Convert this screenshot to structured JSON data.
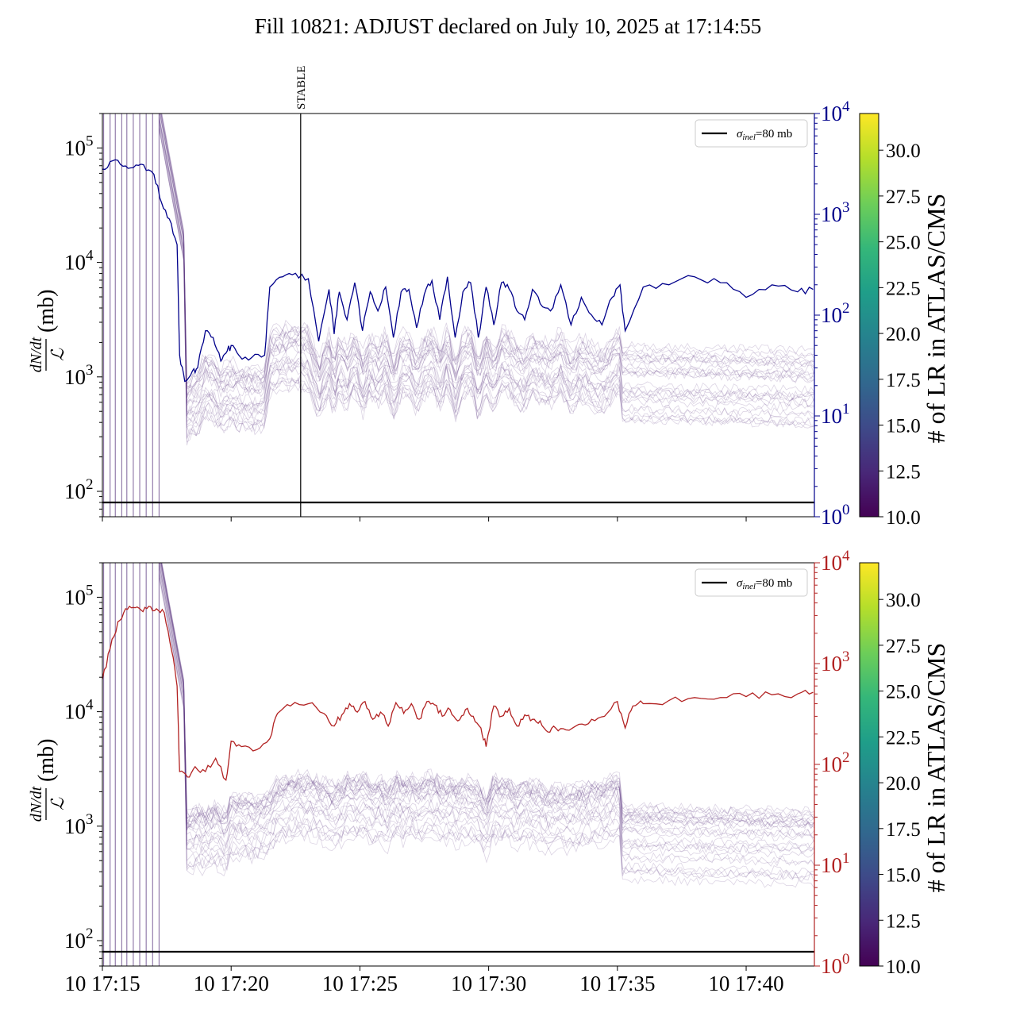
{
  "figure": {
    "title": "Fill 10821: ADJUST declared on July 10, 2025 at 17:14:55"
  },
  "colors": {
    "top_series": "#00008b",
    "bottom_series": "#b22222",
    "lr_traces": "#5e3c82",
    "reference_line": "#000000"
  },
  "chart_data": [
    {
      "type": "line",
      "panel": "top",
      "ylabel": "(mb)",
      "ylabel_fraction": {
        "numerator": "dN/dt",
        "denominator": "ℒ"
      },
      "yscale": "log",
      "ylim": [
        60,
        200000
      ],
      "y_ticks": [
        {
          "v": 100,
          "label": "10",
          "exp": "2"
        },
        {
          "v": 1000,
          "label": "10",
          "exp": "3"
        },
        {
          "v": 10000,
          "label": "10",
          "exp": "4"
        },
        {
          "v": 100000,
          "label": "10",
          "exp": "5"
        }
      ],
      "x_ticks": [
        "10 17:15",
        "10 17:20",
        "10 17:25",
        "10 17:30",
        "10 17:35",
        "10 17:40"
      ],
      "xlim_minutes": [
        15.0,
        42.65
      ],
      "y2scale": "log",
      "y2lim": [
        1,
        10000
      ],
      "y2_ticks": [
        {
          "v": 1,
          "label": "10",
          "exp": "0"
        },
        {
          "v": 10,
          "label": "10",
          "exp": "1"
        },
        {
          "v": 100,
          "label": "10",
          "exp": "2"
        },
        {
          "v": 1000,
          "label": "10",
          "exp": "3"
        },
        {
          "v": 10000,
          "label": "10",
          "exp": "4"
        }
      ],
      "y2_color": "#00008b",
      "legend": {
        "label": "σ",
        "label_sub": "inel",
        "label_rest": "=80 mb",
        "placement": "top-right"
      },
      "reference_line_y": 80,
      "markers": [
        {
          "label": "STABLE",
          "x_minute": 22.7
        }
      ],
      "early_vertical_lines_minutes": [
        15.05,
        15.3,
        15.5,
        15.75,
        15.95,
        16.2,
        16.45,
        16.7,
        16.95,
        17.2
      ],
      "colorbar": {
        "label": "# of LR in ATLAS/CMS",
        "range": [
          10.0,
          32.0
        ],
        "ticks": [
          "10.0",
          "12.5",
          "15.0",
          "17.5",
          "20.0",
          "22.5",
          "25.0",
          "27.5",
          "30.0"
        ]
      },
      "series_right_axis": {
        "minute": [
          15.0,
          15.4,
          15.8,
          16.2,
          16.6,
          17.0,
          17.3,
          17.6,
          17.9,
          18.0,
          18.2,
          18.5,
          18.7,
          19.0,
          19.3,
          19.6,
          19.8,
          20.0,
          20.3,
          20.8,
          21.3,
          21.5,
          22.0,
          22.5,
          23.0,
          23.4,
          23.8,
          24.0,
          24.2,
          24.5,
          24.8,
          25.1,
          25.4,
          25.7,
          26.0,
          26.3,
          26.6,
          26.9,
          27.2,
          27.5,
          27.8,
          28.1,
          28.4,
          28.7,
          29.0,
          29.3,
          29.6,
          29.9,
          30.2,
          30.5,
          30.8,
          31.1,
          31.4,
          31.7,
          32.0,
          32.4,
          32.8,
          33.2,
          33.6,
          34.0,
          34.4,
          34.8,
          35.1,
          35.3,
          36.0,
          37.0,
          38.0,
          39.0,
          40.0,
          41.0,
          42.0,
          42.6
        ],
        "value": [
          2800,
          3400,
          3000,
          2900,
          3100,
          2500,
          1300,
          900,
          500,
          40,
          22,
          28,
          30,
          70,
          60,
          35,
          42,
          50,
          40,
          38,
          40,
          190,
          240,
          260,
          230,
          55,
          180,
          65,
          170,
          90,
          210,
          70,
          170,
          110,
          190,
          60,
          170,
          180,
          75,
          160,
          220,
          90,
          240,
          60,
          170,
          210,
          60,
          190,
          80,
          210,
          180,
          110,
          90,
          180,
          130,
          110,
          200,
          80,
          150,
          100,
          80,
          150,
          200,
          70,
          190,
          200,
          240,
          210,
          150,
          200,
          170,
          180
        ]
      }
    },
    {
      "type": "line",
      "panel": "bottom",
      "ylabel": "(mb)",
      "ylabel_fraction": {
        "numerator": "dN/dt",
        "denominator": "ℒ"
      },
      "yscale": "log",
      "ylim": [
        60,
        200000
      ],
      "y_ticks": [
        {
          "v": 100,
          "label": "10",
          "exp": "2"
        },
        {
          "v": 1000,
          "label": "10",
          "exp": "3"
        },
        {
          "v": 10000,
          "label": "10",
          "exp": "4"
        },
        {
          "v": 100000,
          "label": "10",
          "exp": "5"
        }
      ],
      "x_ticks": [
        "10 17:15",
        "10 17:20",
        "10 17:25",
        "10 17:30",
        "10 17:35",
        "10 17:40"
      ],
      "xlim_minutes": [
        15.0,
        42.65
      ],
      "y2scale": "log",
      "y2lim": [
        1,
        10000
      ],
      "y2_ticks": [
        {
          "v": 1,
          "label": "10",
          "exp": "0"
        },
        {
          "v": 10,
          "label": "10",
          "exp": "1"
        },
        {
          "v": 100,
          "label": "10",
          "exp": "2"
        },
        {
          "v": 1000,
          "label": "10",
          "exp": "3"
        },
        {
          "v": 10000,
          "label": "10",
          "exp": "4"
        }
      ],
      "y2_color": "#b22222",
      "legend": {
        "label": "σ",
        "label_sub": "inel",
        "label_rest": "=80 mb",
        "placement": "top-right"
      },
      "reference_line_y": 80,
      "early_vertical_lines_minutes": [
        15.05,
        15.3,
        15.5,
        15.75,
        15.95,
        16.2,
        16.45,
        16.7,
        16.95,
        17.2
      ],
      "colorbar": {
        "label": "# of LR in ATLAS/CMS",
        "range": [
          10.0,
          32.0
        ],
        "ticks": [
          "10.0",
          "12.5",
          "15.0",
          "17.5",
          "20.0",
          "22.5",
          "25.0",
          "27.5",
          "30.0"
        ]
      },
      "series_right_axis": {
        "minute": [
          15.0,
          15.3,
          15.6,
          15.9,
          16.2,
          16.5,
          16.8,
          17.1,
          17.4,
          17.7,
          17.9,
          18.0,
          18.3,
          18.6,
          19.0,
          19.4,
          19.8,
          20.0,
          20.4,
          21.0,
          21.5,
          21.8,
          22.3,
          23.0,
          23.6,
          24.0,
          24.3,
          24.6,
          24.9,
          25.2,
          25.5,
          25.8,
          26.1,
          26.4,
          26.7,
          27.0,
          27.3,
          27.6,
          27.9,
          28.2,
          28.5,
          28.8,
          29.1,
          29.4,
          29.7,
          29.9,
          30.2,
          30.5,
          30.8,
          31.1,
          31.4,
          31.7,
          32.0,
          32.3,
          32.6,
          33.0,
          33.5,
          34.0,
          34.5,
          35.0,
          35.3,
          35.6,
          36.0,
          37.0,
          38.0,
          39.0,
          40.0,
          41.0,
          42.0,
          42.6
        ],
        "value": [
          700,
          1400,
          2600,
          3500,
          3600,
          3400,
          3700,
          3500,
          3200,
          1300,
          600,
          85,
          75,
          95,
          85,
          115,
          70,
          170,
          150,
          140,
          180,
          320,
          380,
          400,
          320,
          240,
          310,
          400,
          330,
          420,
          280,
          330,
          240,
          410,
          320,
          400,
          280,
          420,
          390,
          300,
          350,
          270,
          350,
          300,
          230,
          150,
          380,
          300,
          360,
          240,
          310,
          280,
          270,
          210,
          230,
          220,
          250,
          280,
          300,
          420,
          230,
          380,
          400,
          430,
          460,
          460,
          470,
          490,
          500,
          520
        ]
      }
    }
  ]
}
